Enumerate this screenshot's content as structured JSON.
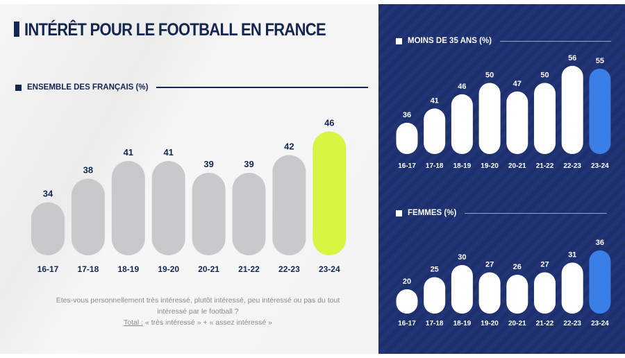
{
  "title": "INTÉRÊT POUR LE FOOTBALL EN FRANCE",
  "note": {
    "question": "Etes-vous personnellement très intéressé, plutôt intéressé, peu intéressé ou pas du tout intéressé par le football ?",
    "total_label": "Total :",
    "total_text": " « très intéressé » + « assez intéressé »"
  },
  "colors": {
    "navy": "#14264f",
    "panel": "#1d2f6c",
    "grey_bar": "#c9c9cc",
    "highlight_left": "#d7f542",
    "highlight_right": "#3a7fe8",
    "white_bar": "#ffffff"
  },
  "chart_data": [
    {
      "type": "bar",
      "title": "ENSEMBLE DES FRANÇAIS (%)",
      "categories": [
        "16-17",
        "17-18",
        "18-19",
        "19-20",
        "20-21",
        "21-22",
        "22-23",
        "23-24"
      ],
      "values": [
        34,
        38,
        41,
        41,
        39,
        39,
        42,
        46
      ],
      "highlight": "23-24"
    },
    {
      "type": "bar",
      "title": "MOINS DE 35 ANS (%)",
      "categories": [
        "16-17",
        "17-18",
        "18-19",
        "19-20",
        "20-21",
        "21-22",
        "22-23",
        "23-24"
      ],
      "values": [
        36,
        41,
        46,
        50,
        47,
        50,
        56,
        55
      ],
      "highlight": "23-24"
    },
    {
      "type": "bar",
      "title": "FEMMES (%)",
      "categories": [
        "16-17",
        "17-18",
        "18-19",
        "19-20",
        "20-21",
        "21-22",
        "22-23",
        "23-24"
      ],
      "values": [
        20,
        25,
        30,
        27,
        26,
        27,
        31,
        36
      ],
      "highlight": "23-24"
    }
  ]
}
